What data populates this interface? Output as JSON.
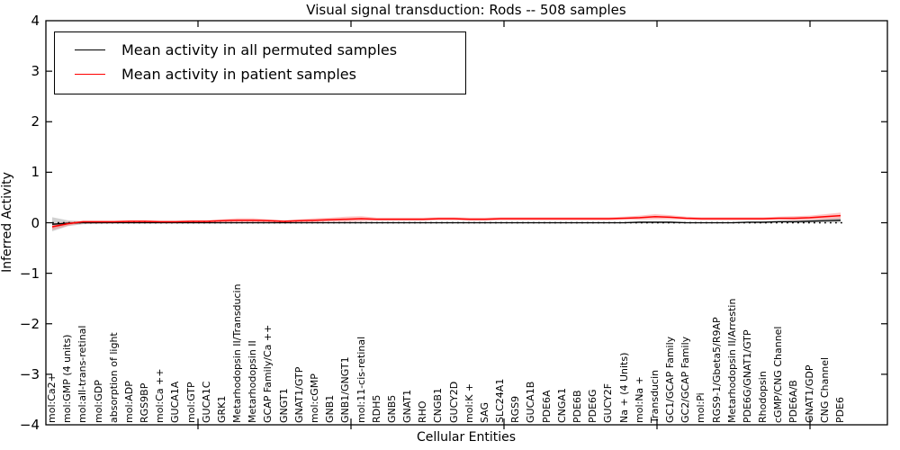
{
  "title": "Visual signal transduction: Rods -- 508 samples",
  "xlabel": "Cellular Entities",
  "ylabel": "Inferred Activity",
  "y_ticks": [
    "4",
    "3",
    "2",
    "1",
    "0",
    "−1",
    "−2",
    "−3",
    "−4"
  ],
  "legend": [
    {
      "label": "Mean activity in all permuted samples",
      "color": "#000000"
    },
    {
      "label": "Mean activity in patient samples",
      "color": "#ff0000"
    }
  ],
  "chart_data": {
    "type": "line",
    "title": "Visual signal transduction: Rods -- 508 samples",
    "xlabel": "Cellular Entities",
    "ylabel": "Inferred Activity",
    "ylim": [
      -4,
      4
    ],
    "grid": false,
    "zero_line": true,
    "legend_position": "upper left",
    "categories": [
      "mol:Ca2+",
      "mol:GMP (4 units)",
      "mol:all-trans-retinal",
      "mol:GDP",
      "absorption of light",
      "mol:ADP",
      "RGS9BP",
      "mol:Ca ++",
      "GUCA1A",
      "mol:GTP",
      "GUCA1C",
      "GRK1",
      "Metarhodopsin II/Transducin",
      "Metarhodopsin II",
      "GCAP Family/Ca ++",
      "GNGT1",
      "GNAT1/GTP",
      "mol:cGMP",
      "GNB1",
      "GNB1/GNGT1",
      "mol:11-cis-retinal",
      "RDH5",
      "GNB5",
      "GNAT1",
      "RHO",
      "CNGB1",
      "GUCY2D",
      "mol:K +",
      "SAG",
      "SLC24A1",
      "RGS9",
      "GUCA1B",
      "PDE6A",
      "CNGA1",
      "PDE6B",
      "PDE6G",
      "GUCY2F",
      "Na + (4 Units)",
      "mol:Na +",
      "Transducin",
      "GC1/GCAP Family",
      "GC2/GCAP Family",
      "mol:Pi",
      "RGS9-1/Gbeta5/R9AP",
      "Metarhodopsin II/Arrestin",
      "PDE6G/GNAT1/GTP",
      "Rhodopsin",
      "cGMP/CNG Channel",
      "PDE6A/B",
      "GNAT1/GDP",
      "CNG Channel",
      "PDE6"
    ],
    "series": [
      {
        "name": "Mean activity in all permuted samples",
        "color": "#000000",
        "band_color": "#999999",
        "values": [
          -0.03,
          -0.01,
          0,
          0,
          0,
          0,
          0,
          0,
          0,
          0,
          0,
          0,
          0,
          0,
          0,
          0,
          0,
          0,
          0,
          0,
          0,
          0,
          0,
          0,
          0,
          0,
          0,
          0,
          0,
          0,
          0,
          0,
          0,
          0,
          0,
          0,
          0,
          0,
          0.01,
          0.01,
          0.01,
          0,
          0,
          0,
          0,
          0.01,
          0.01,
          0.02,
          0.02,
          0.03,
          0.04,
          0.05
        ],
        "band_halfwidth": [
          0.14,
          0.06,
          0.03,
          0.02,
          0.01,
          0.01,
          0.01,
          0.01,
          0.01,
          0.01,
          0.01,
          0.01,
          0.01,
          0.01,
          0.01,
          0.01,
          0.01,
          0.01,
          0.01,
          0.01,
          0.01,
          0.01,
          0.01,
          0.01,
          0.01,
          0.01,
          0.01,
          0.01,
          0.01,
          0.01,
          0.01,
          0.01,
          0.01,
          0.01,
          0.01,
          0.01,
          0.01,
          0.01,
          0.02,
          0.02,
          0.02,
          0.01,
          0.01,
          0.01,
          0.01,
          0.01,
          0.02,
          0.02,
          0.03,
          0.03,
          0.04,
          0.05
        ]
      },
      {
        "name": "Mean activity in patient samples",
        "color": "#ff0000",
        "band_color": "#ff7777",
        "values": [
          -0.08,
          -0.02,
          0.02,
          0.02,
          0.02,
          0.03,
          0.03,
          0.02,
          0.02,
          0.03,
          0.03,
          0.04,
          0.05,
          0.05,
          0.04,
          0.03,
          0.04,
          0.05,
          0.06,
          0.07,
          0.08,
          0.07,
          0.07,
          0.07,
          0.07,
          0.08,
          0.08,
          0.07,
          0.07,
          0.08,
          0.08,
          0.08,
          0.08,
          0.08,
          0.08,
          0.08,
          0.08,
          0.09,
          0.1,
          0.12,
          0.11,
          0.09,
          0.08,
          0.08,
          0.08,
          0.08,
          0.08,
          0.09,
          0.09,
          0.1,
          0.12,
          0.14
        ],
        "band_halfwidth": [
          0.06,
          0.04,
          0.02,
          0.02,
          0.02,
          0.02,
          0.02,
          0.02,
          0.02,
          0.02,
          0.02,
          0.03,
          0.04,
          0.04,
          0.03,
          0.02,
          0.03,
          0.04,
          0.04,
          0.05,
          0.05,
          0.03,
          0.03,
          0.03,
          0.03,
          0.03,
          0.03,
          0.03,
          0.03,
          0.03,
          0.03,
          0.03,
          0.03,
          0.03,
          0.03,
          0.03,
          0.03,
          0.03,
          0.04,
          0.05,
          0.04,
          0.03,
          0.03,
          0.03,
          0.03,
          0.03,
          0.03,
          0.03,
          0.04,
          0.04,
          0.05,
          0.06
        ]
      }
    ]
  }
}
